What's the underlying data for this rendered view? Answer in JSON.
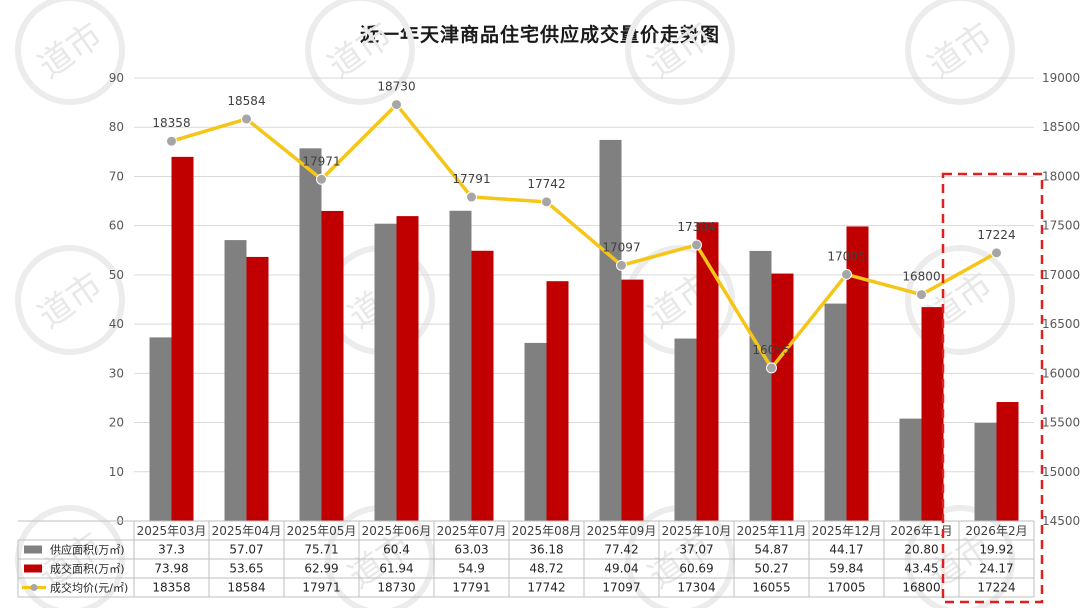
{
  "chart_data": {
    "type": "bar",
    "title": "近一年天津商品住宅供应成交量价走势图",
    "watermark": "道市",
    "categories": [
      "2025年03月",
      "2025年04月",
      "2025年05月",
      "2025年06月",
      "2025年07月",
      "2025年08月",
      "2025年09月",
      "2025年10月",
      "2025年11月",
      "2025年12月",
      "2026年1月",
      "2026年2月"
    ],
    "y_left": {
      "min": 0,
      "max": 90,
      "step": 10,
      "ticks": [
        "0",
        "10",
        "20",
        "30",
        "40",
        "50",
        "60",
        "70",
        "80",
        "90"
      ]
    },
    "y_right": {
      "min": 14500,
      "max": 19000,
      "step": 500,
      "ticks": [
        "14500",
        "15000",
        "15500",
        "16000",
        "16500",
        "17000",
        "17500",
        "18000",
        "18500",
        "19000"
      ]
    },
    "series": [
      {
        "name": "供应面积(万㎡)",
        "kind": "bar",
        "color": "#808080",
        "axis": "left",
        "values": [
          37.3,
          57.07,
          75.71,
          60.4,
          63.03,
          36.18,
          77.42,
          37.07,
          54.87,
          44.17,
          20.8,
          19.92
        ],
        "display": [
          "37.3",
          "57.07",
          "75.71",
          "60.4",
          "63.03",
          "36.18",
          "77.42",
          "37.07",
          "54.87",
          "44.17",
          "20.80",
          "19.92"
        ]
      },
      {
        "name": "成交面积(万㎡)",
        "kind": "bar",
        "color": "#c00000",
        "axis": "left",
        "values": [
          73.98,
          53.65,
          62.99,
          61.94,
          54.9,
          48.72,
          49.04,
          60.69,
          50.27,
          59.84,
          43.45,
          24.17
        ],
        "display": [
          "73.98",
          "53.65",
          "62.99",
          "61.94",
          "54.9",
          "48.72",
          "49.04",
          "60.69",
          "50.27",
          "59.84",
          "43.45",
          "24.17"
        ]
      },
      {
        "name": "成交均价(元/㎡)",
        "kind": "line",
        "color": "#f5c518",
        "marker_color": "#a6a6a6",
        "axis": "right",
        "values": [
          18358,
          18584,
          17971,
          18730,
          17791,
          17742,
          17097,
          17304,
          16055,
          17005,
          16800,
          17224
        ],
        "display": [
          "18358",
          "18584",
          "17971",
          "18730",
          "17791",
          "17742",
          "17097",
          "17304",
          "16055",
          "17005",
          "16800",
          "17224"
        ]
      }
    ],
    "grid": true,
    "legend": "data-table-bottom",
    "highlight": {
      "category": "2026年2月",
      "style": "red-dashed-box"
    }
  }
}
